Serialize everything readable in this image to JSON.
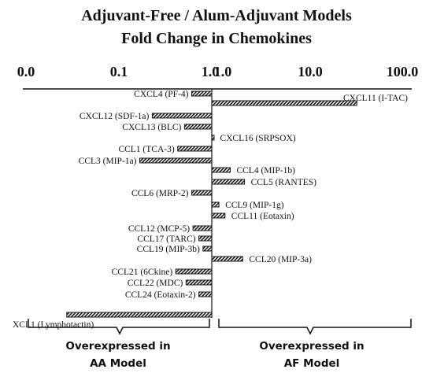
{
  "chart_data": {
    "type": "bar",
    "title": "Adjuvant-Free / Alum-Adjuvant Models",
    "subtitle": "Fold Change in Chemokines",
    "scale": "log",
    "xlim": [
      0.01,
      100
    ],
    "x_ticks": [
      "0.0",
      "0.1",
      "1.0",
      "1.0",
      "10.0",
      "100.0"
    ],
    "grid": false,
    "legend": "none",
    "bar_color": "#1a1a1a",
    "categories": [
      "CXCL4 (PF-4)",
      "CXCL11 (I-TAC)",
      "CXCL12 (SDF-1a)",
      "CXCL13 (BLC)",
      "CXCL16 (SRPSOX)",
      "CCL1 (TCA-3)",
      "CCL3 (MIP-1a)",
      "CCL4 (MIP-1b)",
      "CCL5 (RANTES)",
      "CCL6 (MRP-2)",
      "CCL9 (MIP-1g)",
      "CCL11 (Eotaxin)",
      "CCL12 (MCP-5)",
      "CCL17 (TARC)",
      "CCL19 (MIP-3b)",
      "CCL20 (MIP-3a)",
      "CCL21 (6Ckine)",
      "CCL22 (MDC)",
      "CCL24 (Eotaxin-2)",
      "XCL1 (Lymphotactin)"
    ],
    "values": [
      0.6,
      40,
      0.22,
      0.5,
      1.05,
      0.42,
      0.16,
      1.6,
      2.3,
      0.6,
      1.2,
      1.4,
      0.62,
      0.72,
      0.8,
      2.2,
      0.4,
      0.52,
      0.72,
      0.025
    ],
    "annotations": [
      {
        "text": "Overexpressed in AA Model",
        "lines": [
          "Overexpressed in",
          "AA Model"
        ]
      },
      {
        "text": "Overexpressed in AF Model",
        "lines": [
          "Overexpressed in",
          "AF Model"
        ]
      }
    ]
  }
}
